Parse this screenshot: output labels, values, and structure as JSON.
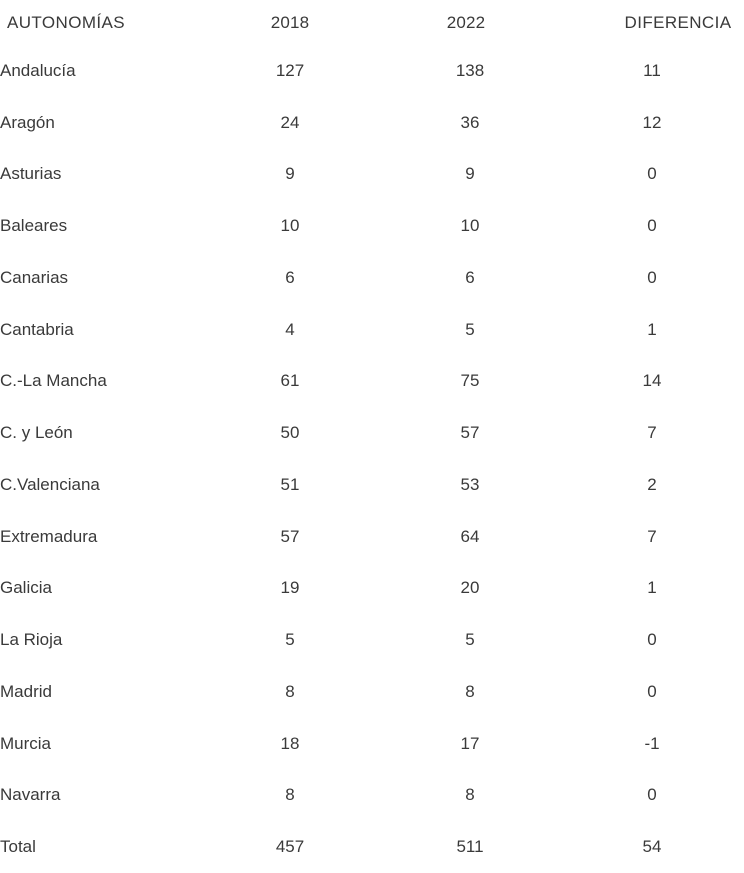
{
  "colors": {
    "text": "#3a3a3a",
    "background": "#ffffff"
  },
  "chart_data": {
    "type": "table",
    "title": "",
    "columns": [
      "AUTONOMÍAS",
      "2018",
      "2022",
      "DIFERENCIA"
    ],
    "categories": [
      "Andalucía",
      "Aragón",
      "Asturias",
      "Baleares",
      "Canarias",
      "Cantabria",
      "C.-La Mancha",
      "C. y León",
      "C.Valenciana",
      "Extremadura",
      "Galicia",
      "La Rioja",
      "Madrid",
      "Murcia",
      "Navarra"
    ],
    "series": [
      {
        "name": "2018",
        "values": [
          127,
          24,
          9,
          10,
          6,
          4,
          61,
          50,
          51,
          57,
          19,
          5,
          8,
          18,
          8
        ]
      },
      {
        "name": "2022",
        "values": [
          138,
          36,
          9,
          10,
          6,
          5,
          75,
          57,
          53,
          64,
          20,
          5,
          8,
          17,
          8
        ]
      },
      {
        "name": "DIFERENCIA",
        "values": [
          11,
          12,
          0,
          0,
          0,
          1,
          14,
          7,
          2,
          7,
          1,
          0,
          0,
          -1,
          0
        ]
      }
    ],
    "total_row": {
      "label": "Total",
      "values": [
        457,
        511,
        54
      ]
    },
    "rows": [
      [
        "Andalucía",
        "127",
        "138",
        "11"
      ],
      [
        "Aragón",
        "24",
        "36",
        "12"
      ],
      [
        "Asturias",
        "9",
        "9",
        "0"
      ],
      [
        "Baleares",
        "10",
        "10",
        "0"
      ],
      [
        "Canarias",
        "6",
        "6",
        "0"
      ],
      [
        "Cantabria",
        "4",
        "5",
        "1"
      ],
      [
        "C.-La Mancha",
        "61",
        "75",
        "14"
      ],
      [
        "C. y León",
        "50",
        "57",
        "7"
      ],
      [
        "C.Valenciana",
        "51",
        "53",
        "2"
      ],
      [
        "Extremadura",
        "57",
        "64",
        "7"
      ],
      [
        "Galicia",
        "19",
        "20",
        "1"
      ],
      [
        "La Rioja",
        "5",
        "5",
        "0"
      ],
      [
        "Madrid",
        "8",
        "8",
        "0"
      ],
      [
        "Murcia",
        "18",
        "17",
        "-1"
      ],
      [
        "Navarra",
        "8",
        "8",
        "0"
      ],
      [
        "Total",
        "457",
        "511",
        "54"
      ]
    ]
  }
}
